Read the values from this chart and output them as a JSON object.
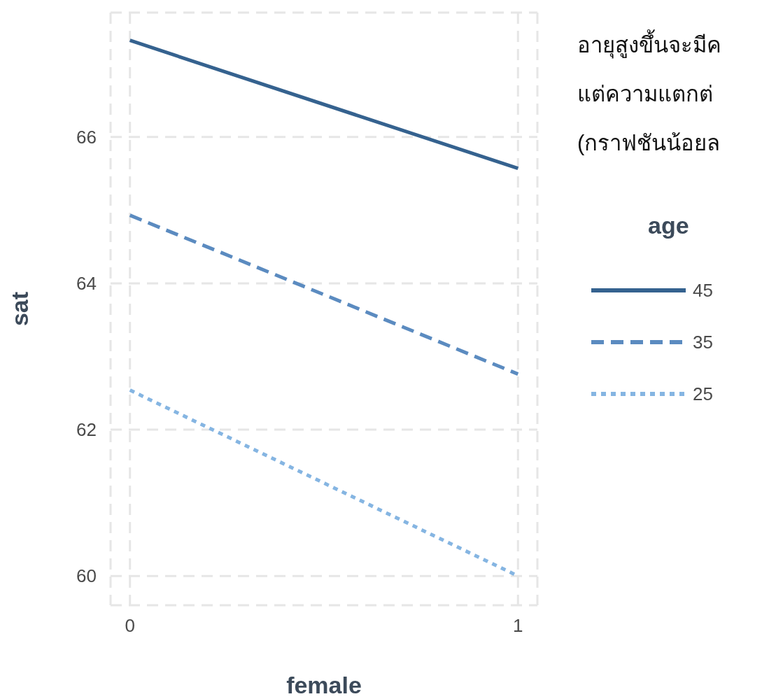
{
  "chart_data": {
    "type": "line",
    "title": "อายุสูงขึ้นจะมีค\nแต่ความแตกต่\n(กราฟชันน้อยล",
    "xlabel": "female",
    "ylabel": "sat",
    "legend_title": "age",
    "x": [
      0,
      1
    ],
    "xlim": [
      -0.05,
      1.05
    ],
    "xticks": [
      0,
      1
    ],
    "ylim": [
      59.6,
      67.7
    ],
    "yticks": [
      60,
      62,
      64,
      66
    ],
    "grid": true,
    "legend": "right",
    "series": [
      {
        "name": "45",
        "color": "#35628f",
        "line_style": "solid",
        "values": [
          67.32,
          65.57
        ]
      },
      {
        "name": "35",
        "color": "#5b8bc0",
        "line_style": "dashed",
        "values": [
          64.93,
          62.76
        ]
      },
      {
        "name": "25",
        "color": "#85b5e2",
        "line_style": "dotted",
        "values": [
          62.54,
          60.0
        ]
      }
    ]
  }
}
